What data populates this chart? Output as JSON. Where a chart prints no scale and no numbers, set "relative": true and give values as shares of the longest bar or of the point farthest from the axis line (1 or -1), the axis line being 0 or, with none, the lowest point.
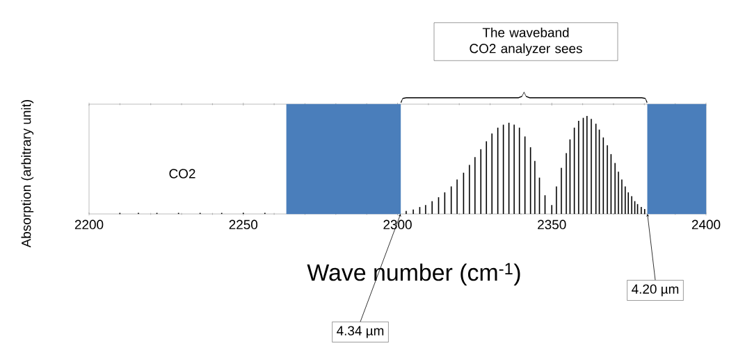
{
  "chart_data": {
    "type": "bar",
    "relative": true,
    "color": "#000000",
    "xlabel": "Wave number (cm$^{-1}$)",
    "ylabel": "Absorption (arbitrary unit)",
    "xlim": [
      2200,
      2400
    ],
    "xticks": [
      2200,
      2250,
      2300,
      2350,
      2400
    ],
    "x": [
      2210,
      2216,
      2222,
      2229,
      2236,
      2243,
      2250,
      2257,
      2302.8,
      2305.1,
      2307.2,
      2309.1,
      2311.2,
      2313.3,
      2315.3,
      2317.4,
      2319.3,
      2321.4,
      2323.3,
      2325.1,
      2327.0,
      2328.8,
      2330.6,
      2332.5,
      2334.3,
      2336.1,
      2337.8,
      2339.5,
      2341.3,
      2343.1,
      2344.5,
      2346.0,
      2347.8,
      2350.0,
      2351.5,
      2353.1,
      2354.7,
      2355.9,
      2357.3,
      2358.7,
      2360.2,
      2361.4,
      2362.8,
      2364.3,
      2365.4,
      2366.7,
      2368.0,
      2369.2,
      2370.5,
      2371.6,
      2372.7,
      2373.8,
      2374.8,
      2375.9,
      2376.9,
      2377.8,
      2379.0,
      2380.1
    ],
    "values": [
      0.01,
      0.01,
      0.01,
      0.01,
      0.01,
      0.01,
      0.01,
      0.01,
      0.03,
      0.045,
      0.07,
      0.09,
      0.13,
      0.17,
      0.22,
      0.28,
      0.35,
      0.42,
      0.5,
      0.58,
      0.66,
      0.74,
      0.82,
      0.88,
      0.91,
      0.93,
      0.91,
      0.88,
      0.79,
      0.68,
      0.54,
      0.37,
      0.19,
      0.09,
      0.28,
      0.47,
      0.62,
      0.76,
      0.88,
      0.95,
      0.98,
      1.0,
      0.97,
      0.92,
      0.86,
      0.78,
      0.7,
      0.61,
      0.52,
      0.43,
      0.35,
      0.28,
      0.22,
      0.18,
      0.13,
      0.1,
      0.07,
      0.05
    ],
    "bands": [
      {
        "axis": "x",
        "from": 2264,
        "to": 2301,
        "color": "#4a7ebb"
      },
      {
        "axis": "x",
        "from": 2381,
        "to": 2400,
        "color": "#4a7ebb"
      }
    ],
    "annotations": [
      "The waveband CO2 analyzer sees",
      "CO2",
      {
        "text": "4.34 µm",
        "x": 2301,
        "y": 0
      },
      {
        "text": "4.20 µm",
        "x": 2381,
        "y": 0
      }
    ]
  }
}
